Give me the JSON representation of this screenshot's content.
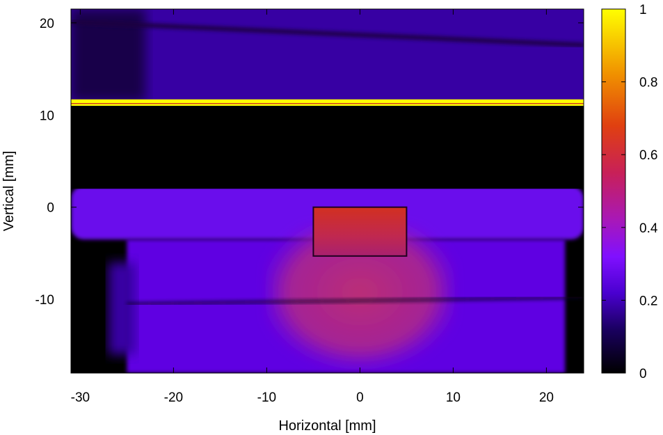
{
  "chart_data": {
    "type": "heatmap",
    "title": "",
    "xlabel": "Horizontal [mm]",
    "ylabel": "Vertical [mm]",
    "xlim": [
      -31,
      24
    ],
    "ylim": [
      -18,
      21.5
    ],
    "x_ticks": [
      -30,
      -20,
      -10,
      0,
      10,
      20
    ],
    "y_ticks": [
      -10,
      0,
      10,
      20
    ],
    "colorbar": {
      "range": [
        0,
        1
      ],
      "ticks": [
        0,
        0.2,
        0.4,
        0.6,
        0.8,
        1
      ],
      "tick_labels": [
        "0",
        "0.2",
        "0.4",
        "0.6",
        "0.8",
        "1"
      ],
      "colormap": [
        "#000000",
        "#2a0090",
        "#7a10ff",
        "#a010c0",
        "#d02040",
        "#e85010",
        "#f8a000",
        "#ffff00"
      ]
    },
    "regions": [
      {
        "name": "upper-panel",
        "x": [
          -31,
          24
        ],
        "y": [
          11.5,
          21.5
        ],
        "value": 0.2
      },
      {
        "name": "bright-stripe",
        "x": [
          -31,
          24
        ],
        "y": [
          11.0,
          11.7
        ],
        "value": 1.0
      },
      {
        "name": "dark-band",
        "x": [
          -31,
          24
        ],
        "y": [
          2,
          11
        ],
        "value": 0.0
      },
      {
        "name": "lower-panel",
        "x": [
          -31,
          24
        ],
        "y": [
          -18,
          2
        ],
        "value": 0.28
      },
      {
        "name": "central-blob",
        "x": [
          -10,
          10
        ],
        "y": [
          -18,
          -2
        ],
        "value": 0.45
      },
      {
        "name": "peak-box",
        "x": [
          -5,
          5
        ],
        "y": [
          -5.3,
          0
        ],
        "value": 0.55
      }
    ],
    "grid_lines_x": [
      -20,
      -10,
      0,
      10,
      20
    ],
    "grid_lines_y": [
      -10.5
    ]
  }
}
